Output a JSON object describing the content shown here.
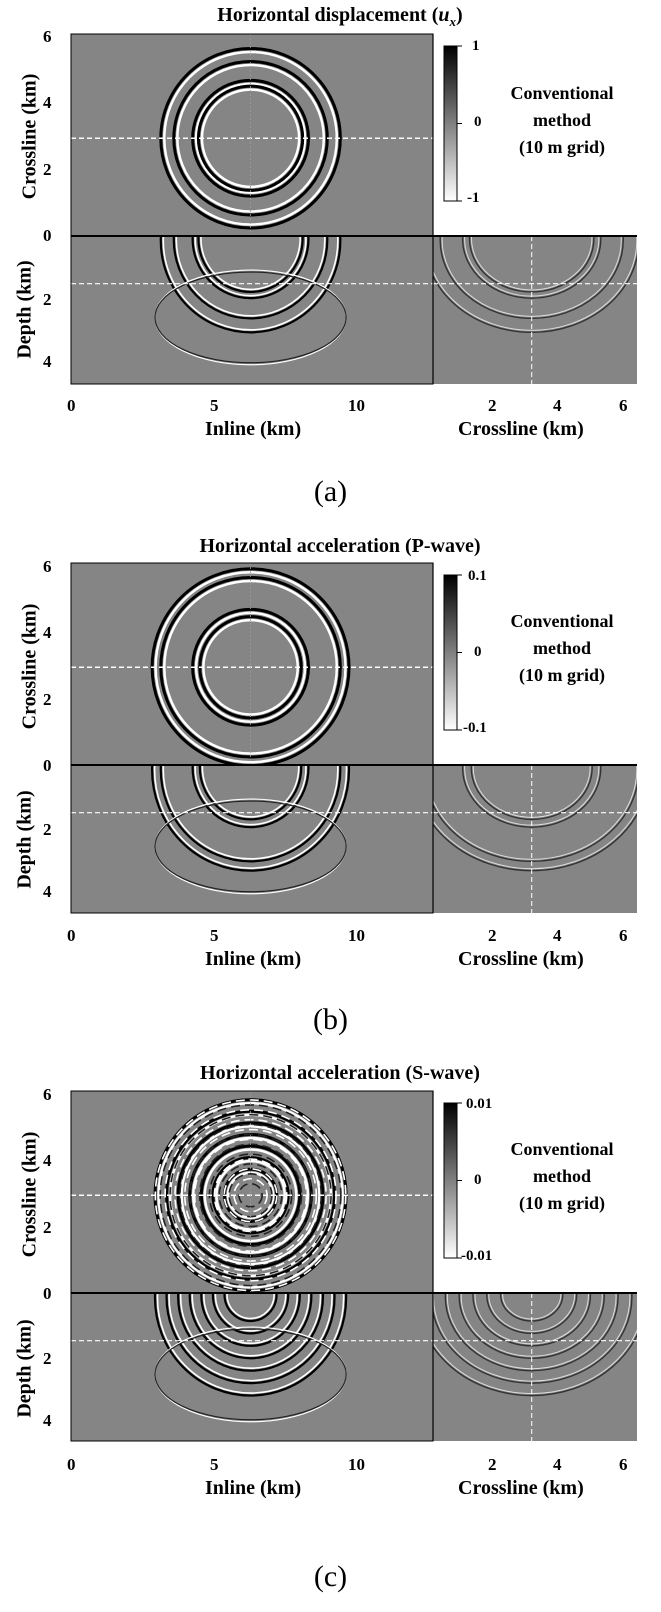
{
  "chart_data": [
    {
      "type": "heatmap",
      "panel": "(a)",
      "title": "Horizontal displacement (u_x)",
      "title_main": "Horizontal displacement (",
      "title_var": "u",
      "title_sub": "x",
      "title_end": ")",
      "ylabel_top": "Crossline (km)",
      "ylabel_bottom": "Depth (km)",
      "xlabel_left": "Inline (km)",
      "xlabel_right": "Crossline (km)",
      "colorbar_ticks": [
        "1",
        "0",
        "-1"
      ],
      "colorbar_range": [
        -1,
        1
      ],
      "legend": [
        "Conventional",
        "method",
        "(10 m grid)"
      ],
      "inline_range_km": [
        0,
        12.5
      ],
      "crossline_range_km": [
        0,
        6.2
      ],
      "depth_range_km": [
        0,
        4.5
      ],
      "inline_ticks": [
        0,
        5,
        10
      ],
      "crossline_ticks_top": [
        2,
        4,
        6
      ],
      "crossline_ticks_bottom": [
        2,
        4,
        6
      ],
      "depth_ticks": [
        0,
        2,
        4
      ],
      "slice_crossline_km": 3.0,
      "slice_inline_km": 6.2,
      "slice_depth_km": 1.45,
      "wavefront_radii_km": [
        3.1,
        2.65,
        2.0,
        1.8
      ],
      "colormap": "gray"
    },
    {
      "type": "heatmap",
      "panel": "(b)",
      "title": "Horizontal acceleration (P-wave)",
      "ylabel_top": "Crossline (km)",
      "ylabel_bottom": "Depth (km)",
      "xlabel_left": "Inline (km)",
      "xlabel_right": "Crossline (km)",
      "colorbar_ticks": [
        "0.1",
        "0",
        "-0.1"
      ],
      "colorbar_range": [
        -0.1,
        0.1
      ],
      "legend": [
        "Conventional",
        "method",
        "(10 m grid)"
      ],
      "inline_range_km": [
        0,
        12.5
      ],
      "crossline_range_km": [
        0,
        6.2
      ],
      "depth_range_km": [
        0,
        4.5
      ],
      "inline_ticks": [
        0,
        5,
        10
      ],
      "crossline_ticks_top": [
        2,
        4,
        6
      ],
      "crossline_ticks_bottom": [
        2,
        4,
        6
      ],
      "depth_ticks": [
        0,
        2,
        4
      ],
      "slice_crossline_km": 3.0,
      "slice_inline_km": 6.2,
      "slice_depth_km": 1.45,
      "wavefront_radii_km": [
        3.4,
        3.1,
        2.0,
        1.75
      ],
      "colormap": "gray"
    },
    {
      "type": "heatmap",
      "panel": "(c)",
      "title": "Horizontal acceleration (S-wave)",
      "ylabel_top": "Crossline (km)",
      "ylabel_bottom": "Depth (km)",
      "xlabel_left": "Inline (km)",
      "xlabel_right": "Crossline (km)",
      "colorbar_ticks": [
        "0.01",
        "0",
        "-0.01"
      ],
      "colorbar_range": [
        -0.01,
        0.01
      ],
      "legend": [
        "Conventional",
        "method",
        "(10 m grid)"
      ],
      "inline_range_km": [
        0,
        12.5
      ],
      "crossline_range_km": [
        0,
        6.2
      ],
      "depth_range_km": [
        0,
        4.5
      ],
      "inline_ticks": [
        0,
        5,
        10
      ],
      "crossline_ticks_top": [
        2,
        4,
        6
      ],
      "crossline_ticks_bottom": [
        2,
        4,
        6
      ],
      "depth_ticks": [
        0,
        2,
        4
      ],
      "slice_crossline_km": 3.0,
      "slice_inline_km": 6.2,
      "slice_depth_km": 1.45,
      "wavefront_radii_km": [
        3.3,
        2.9,
        2.5,
        2.1,
        1.7,
        1.3,
        0.9
      ],
      "colormap": "gray"
    }
  ]
}
